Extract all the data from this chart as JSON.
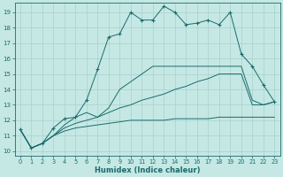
{
  "xlabel": "Humidex (Indice chaleur)",
  "bg_color": "#c5e8e5",
  "line_color": "#1a6b6b",
  "grid_color": "#a8d0cc",
  "xlim": [
    -0.5,
    23.5
  ],
  "ylim": [
    9.7,
    19.6
  ],
  "xticks": [
    0,
    1,
    2,
    3,
    4,
    5,
    6,
    7,
    8,
    9,
    10,
    11,
    12,
    13,
    14,
    15,
    16,
    17,
    18,
    19,
    20,
    21,
    22,
    23
  ],
  "yticks": [
    10,
    11,
    12,
    13,
    14,
    15,
    16,
    17,
    18,
    19
  ],
  "curve1_x": [
    0,
    1,
    2,
    3,
    4,
    5,
    6,
    7,
    8,
    9,
    10,
    11,
    12,
    13,
    14,
    15,
    16,
    17,
    18,
    19,
    20,
    21,
    22,
    23
  ],
  "curve1_y": [
    11.4,
    10.2,
    10.5,
    11.5,
    12.1,
    12.2,
    13.3,
    15.3,
    17.4,
    17.6,
    19.0,
    18.5,
    18.5,
    19.4,
    19.0,
    18.2,
    18.3,
    18.5,
    18.2,
    19.0,
    16.3,
    15.5,
    14.3,
    13.2
  ],
  "curve2_x": [
    0,
    1,
    2,
    3,
    4,
    5,
    6,
    7,
    8,
    9,
    10,
    11,
    12,
    13,
    14,
    15,
    16,
    17,
    18,
    19,
    20,
    21,
    22,
    23
  ],
  "curve2_y": [
    11.4,
    10.2,
    10.5,
    11.0,
    11.7,
    12.2,
    12.5,
    12.2,
    12.8,
    14.0,
    14.5,
    15.0,
    15.5,
    15.5,
    15.5,
    15.5,
    15.5,
    15.5,
    15.5,
    15.5,
    15.5,
    13.3,
    13.0,
    13.2
  ],
  "curve3_x": [
    0,
    1,
    2,
    3,
    4,
    5,
    6,
    7,
    8,
    9,
    10,
    11,
    12,
    13,
    14,
    15,
    16,
    17,
    18,
    19,
    20,
    21,
    22,
    23
  ],
  "curve3_y": [
    11.4,
    10.2,
    10.5,
    11.0,
    11.5,
    11.8,
    12.0,
    12.2,
    12.5,
    12.8,
    13.0,
    13.3,
    13.5,
    13.7,
    14.0,
    14.2,
    14.5,
    14.7,
    15.0,
    15.0,
    15.0,
    13.0,
    13.0,
    13.2
  ],
  "curve4_x": [
    0,
    1,
    2,
    3,
    4,
    5,
    6,
    7,
    8,
    9,
    10,
    11,
    12,
    13,
    14,
    15,
    16,
    17,
    18,
    19,
    20,
    21,
    22,
    23
  ],
  "curve4_y": [
    11.4,
    10.2,
    10.5,
    11.0,
    11.3,
    11.5,
    11.6,
    11.7,
    11.8,
    11.9,
    12.0,
    12.0,
    12.0,
    12.0,
    12.1,
    12.1,
    12.1,
    12.1,
    12.2,
    12.2,
    12.2,
    12.2,
    12.2,
    12.2
  ]
}
